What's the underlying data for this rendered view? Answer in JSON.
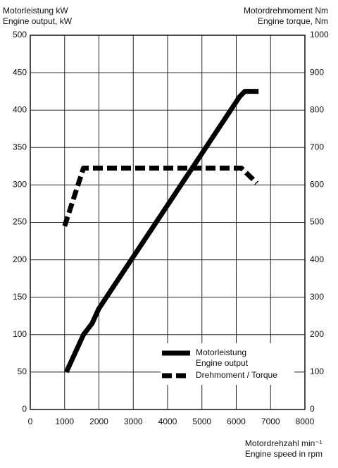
{
  "chart_data": {
    "type": "line",
    "y_label": "Motorleistung kW\nEngine output, kW",
    "y2_label": "Motordrehmoment Nm\nEngine torque, Nm",
    "x_label": "Motordrehzahl min⁻¹\nEngine speed in rpm",
    "xlim": [
      0,
      8000
    ],
    "xticks": [
      0,
      1000,
      2000,
      3000,
      4000,
      5000,
      6000,
      7000,
      8000
    ],
    "ylim": [
      0,
      500
    ],
    "yticks": [
      0,
      50,
      100,
      150,
      200,
      250,
      300,
      350,
      400,
      450,
      500
    ],
    "y2lim": [
      0,
      1000
    ],
    "y2ticks": [
      0,
      100,
      200,
      300,
      400,
      500,
      600,
      700,
      800,
      900,
      1000
    ],
    "grid": true,
    "legend": "lower right",
    "series": [
      {
        "name": "Motorleistung\nEngine output",
        "color": "#000000",
        "style": "solid",
        "x": [
          1050,
          1550,
          1800,
          2000,
          6100,
          6250,
          6650
        ],
        "values": [
          50,
          100,
          115,
          135,
          418,
          425,
          425
        ]
      },
      {
        "name": "Drehmoment / Torque",
        "color": "#000000",
        "style": "dashed",
        "axis": "y2",
        "x": [
          1000,
          1550,
          6150,
          6600
        ],
        "values": [
          490,
          645,
          645,
          605
        ]
      }
    ]
  }
}
